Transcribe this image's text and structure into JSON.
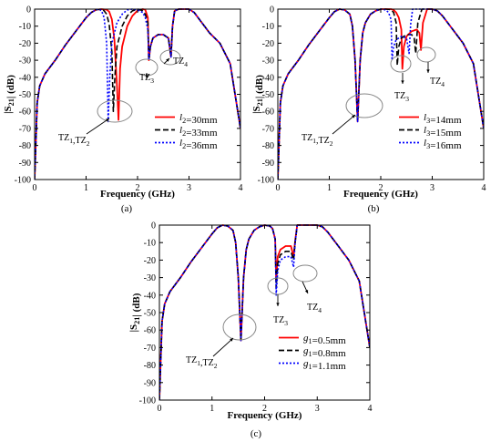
{
  "panels": [
    {
      "id": "a",
      "caption": "(a)",
      "xlabel": "Frequency (GHz)",
      "ylabel": "|S21| (dB)",
      "annotations": [
        {
          "text": "TZ1,TZ2"
        },
        {
          "text": "TZ3"
        },
        {
          "text": "TZ4"
        }
      ],
      "legend": [
        {
          "label": "l2=30mm",
          "color": "#ff0000",
          "dash": "solid"
        },
        {
          "label": "l2=33mm",
          "color": "#000000",
          "dash": "dash"
        },
        {
          "label": "l2=36mm",
          "color": "#0000ff",
          "dash": "dot"
        }
      ]
    },
    {
      "id": "b",
      "caption": "(b)",
      "xlabel": "Frequency (GHz)",
      "ylabel": "|S21| (dB)",
      "annotations": [
        {
          "text": "TZ1,TZ2"
        },
        {
          "text": "TZ3"
        },
        {
          "text": "TZ4"
        }
      ],
      "legend": [
        {
          "label": "l3=14mm",
          "color": "#ff0000",
          "dash": "solid"
        },
        {
          "label": "l3=15mm",
          "color": "#000000",
          "dash": "dash"
        },
        {
          "label": "l3=16mm",
          "color": "#0000ff",
          "dash": "dot"
        }
      ]
    },
    {
      "id": "c",
      "caption": "(c)",
      "xlabel": "Frequency (GHz)",
      "ylabel": "|S21| (dB)",
      "annotations": [
        {
          "text": "TZ1,TZ2"
        },
        {
          "text": "TZ3"
        },
        {
          "text": "TZ4"
        }
      ],
      "legend": [
        {
          "label": "g1=0.5mm",
          "color": "#ff0000",
          "dash": "solid"
        },
        {
          "label": "g1=0.8mm",
          "color": "#000000",
          "dash": "dash"
        },
        {
          "label": "g1=1.1mm",
          "color": "#0000ff",
          "dash": "dot"
        }
      ]
    }
  ],
  "chart_data": [
    {
      "type": "line",
      "xlim": [
        0,
        4
      ],
      "ylim": [
        -100,
        0
      ],
      "xticks": [
        0,
        1,
        2,
        3,
        4
      ],
      "yticks": [
        0,
        -10,
        -20,
        -30,
        -40,
        -50,
        -60,
        -70,
        -80,
        -90,
        -100
      ],
      "xlabel": "Frequency (GHz)",
      "ylabel": "|S21| (dB)",
      "legend_position": "bottom-right",
      "series": [
        {
          "name": "l2=30mm",
          "color": "#ff0000",
          "dash": "solid",
          "x": [
            0,
            0.05,
            0.1,
            0.2,
            0.4,
            0.6,
            0.8,
            1.0,
            1.1,
            1.2,
            1.3,
            1.4,
            1.45,
            1.5,
            1.55,
            1.6,
            1.63,
            1.66,
            1.7,
            1.8,
            1.9,
            2.0,
            2.1,
            2.15,
            2.2,
            2.22,
            2.25,
            2.3,
            2.4,
            2.5,
            2.6,
            2.65,
            2.68,
            2.72,
            2.8,
            3.0,
            3.1,
            3.2,
            3.4,
            3.6,
            3.8,
            4.0
          ],
          "y": [
            -100,
            -55,
            -45,
            -38,
            -30,
            -21,
            -13,
            -5,
            -2,
            -0.3,
            0,
            -0.3,
            -1.5,
            -6,
            -18,
            -45,
            -65,
            -35,
            -22,
            -10,
            -4,
            -0.8,
            0,
            -0.3,
            -5,
            -30,
            -22,
            -17,
            -15,
            -15,
            -17,
            -28,
            -10,
            -1,
            0,
            0,
            -2,
            -6,
            -14,
            -20,
            -32,
            -70
          ]
        },
        {
          "name": "l2=33mm",
          "color": "#000000",
          "dash": "dash",
          "x": [
            0,
            0.05,
            0.1,
            0.2,
            0.4,
            0.6,
            0.8,
            1.0,
            1.1,
            1.2,
            1.3,
            1.35,
            1.4,
            1.45,
            1.5,
            1.53,
            1.56,
            1.6,
            1.7,
            1.8,
            1.9,
            2.0,
            2.05,
            2.1,
            2.15,
            2.2,
            2.22,
            2.25,
            2.3,
            2.4,
            2.5,
            2.6,
            2.65,
            2.68,
            2.72,
            2.8,
            3.0,
            3.1,
            3.2,
            3.4,
            3.6,
            3.8,
            4.0
          ],
          "y": [
            -100,
            -55,
            -45,
            -38,
            -30,
            -21,
            -13,
            -5,
            -2,
            -0.3,
            0,
            -1,
            -3,
            -9,
            -25,
            -60,
            -40,
            -22,
            -10,
            -4,
            -1,
            0,
            -0.3,
            -1,
            -3,
            -8,
            -30,
            -22,
            -17,
            -15,
            -15,
            -17,
            -28,
            -10,
            -1,
            0,
            0,
            -2,
            -6,
            -14,
            -20,
            -32,
            -70
          ]
        },
        {
          "name": "l2=36mm",
          "color": "#0000ff",
          "dash": "dot",
          "x": [
            0,
            0.05,
            0.1,
            0.2,
            0.4,
            0.6,
            0.8,
            1.0,
            1.1,
            1.2,
            1.25,
            1.3,
            1.35,
            1.4,
            1.43,
            1.46,
            1.5,
            1.6,
            1.7,
            1.8,
            1.9,
            2.0,
            2.1,
            2.15,
            2.2,
            2.22,
            2.25,
            2.3,
            2.4,
            2.5,
            2.6,
            2.65,
            2.68,
            2.72,
            2.8,
            3.0,
            3.1,
            3.2,
            3.4,
            3.6,
            3.8,
            4.0
          ],
          "y": [
            -100,
            -55,
            -45,
            -38,
            -30,
            -21,
            -13,
            -5,
            -2,
            -0.3,
            0,
            -1,
            -5,
            -20,
            -66,
            -40,
            -20,
            -8,
            -3,
            -0.5,
            0,
            -0.5,
            -2,
            -5,
            -12,
            -30,
            -22,
            -17,
            -15,
            -15,
            -17,
            -28,
            -10,
            -1,
            0,
            0,
            -2,
            -6,
            -14,
            -20,
            -32,
            -70
          ]
        }
      ]
    },
    {
      "type": "line",
      "xlim": [
        0,
        4
      ],
      "ylim": [
        -100,
        0
      ],
      "xticks": [
        0,
        1,
        2,
        3,
        4
      ],
      "yticks": [
        0,
        -10,
        -20,
        -30,
        -40,
        -50,
        -60,
        -70,
        -80,
        -90,
        -100
      ],
      "xlabel": "Frequency (GHz)",
      "ylabel": "|S21| (dB)",
      "legend_position": "bottom-right",
      "series": [
        {
          "name": "l3=14mm",
          "color": "#ff0000",
          "dash": "solid",
          "x": [
            0,
            0.05,
            0.1,
            0.2,
            0.4,
            0.6,
            0.8,
            1.0,
            1.1,
            1.2,
            1.3,
            1.4,
            1.45,
            1.5,
            1.55,
            1.6,
            1.65,
            1.7,
            1.8,
            1.9,
            2.0,
            2.1,
            2.2,
            2.25,
            2.3,
            2.35,
            2.4,
            2.42,
            2.45,
            2.5,
            2.6,
            2.7,
            2.75,
            2.78,
            2.82,
            2.9,
            3.0,
            3.1,
            3.2,
            3.4,
            3.6,
            3.8,
            4.0
          ],
          "y": [
            -100,
            -55,
            -45,
            -38,
            -30,
            -21,
            -13,
            -5,
            -1.5,
            0,
            -0.5,
            -3,
            -10,
            -30,
            -66,
            -30,
            -14,
            -8,
            -3,
            -1,
            0,
            0,
            0,
            -0.5,
            -2,
            -5,
            -12,
            -35,
            -22,
            -16,
            -13,
            -12,
            -14,
            -24,
            -8,
            0,
            0,
            -1,
            -4,
            -12,
            -20,
            -32,
            -70
          ]
        },
        {
          "name": "l3=15mm",
          "color": "#000000",
          "dash": "dash",
          "x": [
            0,
            0.05,
            0.1,
            0.2,
            0.4,
            0.6,
            0.8,
            1.0,
            1.1,
            1.2,
            1.3,
            1.4,
            1.45,
            1.5,
            1.55,
            1.6,
            1.65,
            1.7,
            1.8,
            1.9,
            2.0,
            2.1,
            2.2,
            2.25,
            2.3,
            2.32,
            2.35,
            2.4,
            2.5,
            2.6,
            2.65,
            2.68,
            2.72,
            2.8,
            3.0,
            3.1,
            3.2,
            3.4,
            3.6,
            3.8,
            4.0
          ],
          "y": [
            -100,
            -55,
            -45,
            -38,
            -30,
            -21,
            -13,
            -5,
            -1.5,
            0,
            -0.5,
            -3,
            -10,
            -30,
            -66,
            -30,
            -14,
            -8,
            -3,
            -1,
            0,
            0,
            -0.3,
            -2,
            -8,
            -33,
            -22,
            -17,
            -15,
            -15,
            -17,
            -26,
            -8,
            0,
            0,
            -1,
            -4,
            -12,
            -20,
            -32,
            -70
          ]
        },
        {
          "name": "l3=16mm",
          "color": "#0000ff",
          "dash": "dot",
          "x": [
            0,
            0.05,
            0.1,
            0.2,
            0.4,
            0.6,
            0.8,
            1.0,
            1.1,
            1.2,
            1.3,
            1.4,
            1.45,
            1.5,
            1.55,
            1.6,
            1.65,
            1.7,
            1.8,
            1.9,
            2.0,
            2.1,
            2.15,
            2.2,
            2.22,
            2.25,
            2.3,
            2.4,
            2.5,
            2.55,
            2.58,
            2.62,
            2.7,
            2.8,
            3.0,
            3.1,
            3.2,
            3.4,
            3.6,
            3.8,
            4.0
          ],
          "y": [
            -100,
            -55,
            -45,
            -38,
            -30,
            -21,
            -13,
            -5,
            -1.5,
            0,
            -0.5,
            -3,
            -10,
            -30,
            -66,
            -30,
            -14,
            -8,
            -3,
            -1,
            0,
            -0.5,
            -2,
            -6,
            -30,
            -22,
            -18,
            -16,
            -17,
            -26,
            -9,
            0,
            0,
            0,
            0,
            -1,
            -4,
            -12,
            -20,
            -32,
            -70
          ]
        }
      ]
    },
    {
      "type": "line",
      "xlim": [
        0,
        4
      ],
      "ylim": [
        -100,
        0
      ],
      "xticks": [
        0,
        1,
        2,
        3,
        4
      ],
      "yticks": [
        0,
        -10,
        -20,
        -30,
        -40,
        -50,
        -60,
        -70,
        -80,
        -90,
        -100
      ],
      "xlabel": "Frequency (GHz)",
      "ylabel": "|S21| (dB)",
      "legend_position": "bottom-right",
      "series": [
        {
          "name": "g1=0.5mm",
          "color": "#ff0000",
          "dash": "solid",
          "x": [
            0,
            0.05,
            0.1,
            0.2,
            0.4,
            0.6,
            0.8,
            1.0,
            1.1,
            1.2,
            1.3,
            1.4,
            1.45,
            1.5,
            1.55,
            1.6,
            1.65,
            1.7,
            1.8,
            1.9,
            2.0,
            2.1,
            2.15,
            2.2,
            2.22,
            2.25,
            2.3,
            2.4,
            2.5,
            2.55,
            2.58,
            2.62,
            2.7,
            2.8,
            3.0,
            3.1,
            3.2,
            3.4,
            3.6,
            3.8,
            4.0
          ],
          "y": [
            -100,
            -55,
            -45,
            -38,
            -30,
            -21,
            -13,
            -5,
            -1.5,
            0,
            -0.5,
            -3,
            -10,
            -30,
            -66,
            -30,
            -14,
            -8,
            -3,
            -1,
            0,
            -0.5,
            -2,
            -8,
            -32,
            -18,
            -14,
            -12,
            -12,
            -18,
            -9,
            0,
            0,
            0,
            0,
            -1,
            -4,
            -12,
            -20,
            -32,
            -70
          ]
        },
        {
          "name": "g1=0.8mm",
          "color": "#000000",
          "dash": "dash",
          "x": [
            0,
            0.05,
            0.1,
            0.2,
            0.4,
            0.6,
            0.8,
            1.0,
            1.1,
            1.2,
            1.3,
            1.4,
            1.45,
            1.5,
            1.55,
            1.6,
            1.65,
            1.7,
            1.8,
            1.9,
            2.0,
            2.1,
            2.15,
            2.2,
            2.22,
            2.25,
            2.3,
            2.4,
            2.5,
            2.55,
            2.58,
            2.62,
            2.7,
            2.8,
            3.0,
            3.1,
            3.2,
            3.4,
            3.6,
            3.8,
            4.0
          ],
          "y": [
            -100,
            -55,
            -45,
            -38,
            -30,
            -21,
            -13,
            -5,
            -1.5,
            0,
            -0.5,
            -3,
            -10,
            -30,
            -66,
            -30,
            -14,
            -8,
            -3,
            -1,
            0,
            -0.5,
            -2,
            -8,
            -36,
            -22,
            -17,
            -15,
            -15,
            -20,
            -10,
            0,
            0,
            0,
            0,
            -1,
            -4,
            -12,
            -20,
            -32,
            -70
          ]
        },
        {
          "name": "g1=1.1mm",
          "color": "#0000ff",
          "dash": "dot",
          "x": [
            0,
            0.05,
            0.1,
            0.2,
            0.4,
            0.6,
            0.8,
            1.0,
            1.1,
            1.2,
            1.3,
            1.4,
            1.45,
            1.5,
            1.55,
            1.6,
            1.65,
            1.7,
            1.8,
            1.9,
            2.0,
            2.1,
            2.15,
            2.2,
            2.22,
            2.25,
            2.3,
            2.4,
            2.5,
            2.55,
            2.58,
            2.62,
            2.7,
            2.8,
            3.0,
            3.1,
            3.2,
            3.4,
            3.6,
            3.8,
            4.0
          ],
          "y": [
            -100,
            -55,
            -45,
            -38,
            -30,
            -21,
            -13,
            -5,
            -1.5,
            0,
            -0.5,
            -3,
            -10,
            -30,
            -66,
            -30,
            -14,
            -8,
            -3,
            -1,
            0,
            -0.5,
            -2,
            -8,
            -40,
            -26,
            -20,
            -18,
            -18,
            -24,
            -10,
            0,
            0,
            0,
            0,
            -1,
            -4,
            -12,
            -20,
            -32,
            -70
          ]
        }
      ]
    }
  ]
}
